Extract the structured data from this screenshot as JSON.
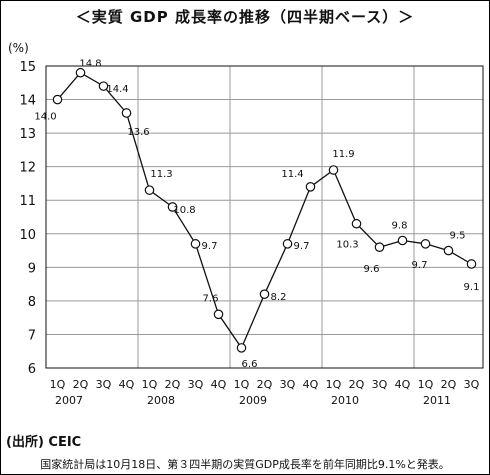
{
  "chart_data": {
    "type": "line",
    "title": "＜実質 GDP 成長率の推移（四半期ベース）＞",
    "ylabel": "(%)",
    "xlabel": "",
    "ylim": [
      6,
      15
    ],
    "yticks": [
      "6",
      "7",
      "8",
      "9",
      "10",
      "11",
      "12",
      "13",
      "14",
      "15"
    ],
    "grid": true,
    "quarters": [
      "1Q",
      "2Q",
      "3Q",
      "4Q",
      "1Q",
      "2Q",
      "3Q",
      "4Q",
      "1Q",
      "2Q",
      "3Q",
      "4Q",
      "1Q",
      "2Q",
      "3Q",
      "4Q",
      "1Q",
      "2Q",
      "3Q"
    ],
    "years": [
      "2007",
      "2008",
      "2009",
      "2010",
      "2011"
    ],
    "categories": [
      "2007 1Q",
      "2007 2Q",
      "2007 3Q",
      "2007 4Q",
      "2008 1Q",
      "2008 2Q",
      "2008 3Q",
      "2008 4Q",
      "2009 1Q",
      "2009 2Q",
      "2009 3Q",
      "2009 4Q",
      "2010 1Q",
      "2010 2Q",
      "2010 3Q",
      "2010 4Q",
      "2011 1Q",
      "2011 2Q",
      "2011 3Q"
    ],
    "values": [
      14.0,
      14.8,
      14.4,
      13.6,
      11.3,
      10.8,
      9.7,
      7.6,
      6.6,
      8.2,
      9.7,
      11.4,
      11.9,
      10.3,
      9.6,
      9.8,
      9.7,
      9.5,
      9.1
    ],
    "data_labels": [
      "14.0",
      "14.8",
      "14.4",
      "13.6",
      "11.3",
      "10.8",
      "9.7",
      "7.6",
      "6.6",
      "8.2",
      "9.7",
      "11.4",
      "11.9",
      "10.3",
      "9.6",
      "9.8",
      "9.7",
      "9.5",
      "9.1"
    ],
    "colors": {
      "line": "#111111",
      "marker_fill": "#ffffff",
      "grid": "#9a9a9a"
    }
  },
  "footer": {
    "source": "(出所) CEIC",
    "note": "国家統計局は10月18日、第３四半期の実質GDP成長率を前年同期比9.1%と発表。"
  }
}
